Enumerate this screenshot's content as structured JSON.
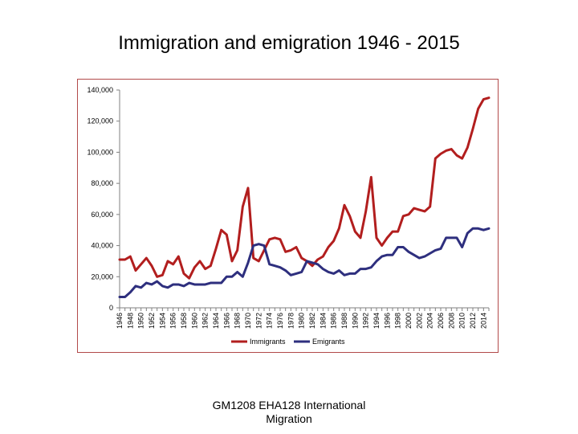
{
  "chart_data": {
    "type": "line",
    "title": "Immigration and emigration 1946 - 2015",
    "xlabel": "",
    "ylabel": "",
    "ylim": [
      0,
      140000
    ],
    "yticks": [
      0,
      20000,
      40000,
      60000,
      80000,
      100000,
      120000,
      140000
    ],
    "ytick_labels": [
      "0",
      "20,000",
      "40,000",
      "60,000",
      "80,000",
      "100,000",
      "120,000",
      "140,000"
    ],
    "x": [
      1946,
      1947,
      1948,
      1949,
      1950,
      1951,
      1952,
      1953,
      1954,
      1955,
      1956,
      1957,
      1958,
      1959,
      1960,
      1961,
      1962,
      1963,
      1964,
      1965,
      1966,
      1967,
      1968,
      1969,
      1970,
      1971,
      1972,
      1973,
      1974,
      1975,
      1976,
      1977,
      1978,
      1979,
      1980,
      1981,
      1982,
      1983,
      1984,
      1985,
      1986,
      1987,
      1988,
      1989,
      1990,
      1991,
      1992,
      1993,
      1994,
      1995,
      1996,
      1997,
      1998,
      1999,
      2000,
      2001,
      2002,
      2003,
      2004,
      2005,
      2006,
      2007,
      2008,
      2009,
      2010,
      2011,
      2012,
      2013,
      2014,
      2015
    ],
    "xtick_labels": [
      "1946",
      "1948",
      "1950",
      "1952",
      "1954",
      "1956",
      "1958",
      "1960",
      "1962",
      "1964",
      "1966",
      "1968",
      "1970",
      "1972",
      "1974",
      "1976",
      "1978",
      "1980",
      "1982",
      "1984",
      "1986",
      "1988",
      "1990",
      "1992",
      "1994",
      "1996",
      "1998",
      "2000",
      "2002",
      "2004",
      "2006",
      "2008",
      "2010",
      "2012",
      "2014"
    ],
    "grid": false,
    "legend_position": "bottom",
    "series": [
      {
        "name": "Immigrants",
        "color": "#b21e1e",
        "values": [
          31000,
          31000,
          33000,
          24000,
          28000,
          32000,
          27000,
          20000,
          21000,
          30000,
          28000,
          33000,
          22000,
          19000,
          26000,
          30000,
          25000,
          27000,
          38000,
          50000,
          47000,
          30000,
          37000,
          65000,
          77000,
          32000,
          30000,
          37000,
          44000,
          45000,
          44000,
          36000,
          37000,
          39000,
          32000,
          30000,
          27000,
          31000,
          33000,
          39000,
          43000,
          51000,
          66000,
          59000,
          49000,
          45000,
          62000,
          84000,
          45000,
          40000,
          45000,
          49000,
          49000,
          59000,
          60000,
          64000,
          63000,
          62000,
          65000,
          96000,
          99000,
          101000,
          102000,
          98000,
          96000,
          103000,
          115000,
          128000,
          134000,
          135000
        ]
      },
      {
        "name": "Emigrants",
        "color": "#2e2f7e",
        "values": [
          7000,
          7000,
          10000,
          14000,
          13000,
          16000,
          15000,
          17000,
          14000,
          13000,
          15000,
          15000,
          14000,
          16000,
          15000,
          15000,
          15000,
          16000,
          16000,
          16000,
          20000,
          20000,
          23000,
          20000,
          29000,
          40000,
          41000,
          40000,
          28000,
          27000,
          26000,
          24000,
          21000,
          22000,
          23000,
          30000,
          29000,
          28000,
          25000,
          23000,
          22000,
          24000,
          21000,
          22000,
          22000,
          25000,
          25000,
          26000,
          30000,
          33000,
          34000,
          34000,
          39000,
          39000,
          36000,
          34000,
          32000,
          33000,
          35000,
          37000,
          38000,
          45000,
          45000,
          45000,
          39000,
          48000,
          51000,
          51000,
          50000,
          51000
        ]
      }
    ]
  },
  "footer": {
    "line1": "GM1208 EHA128   International",
    "line2": "Migration"
  }
}
